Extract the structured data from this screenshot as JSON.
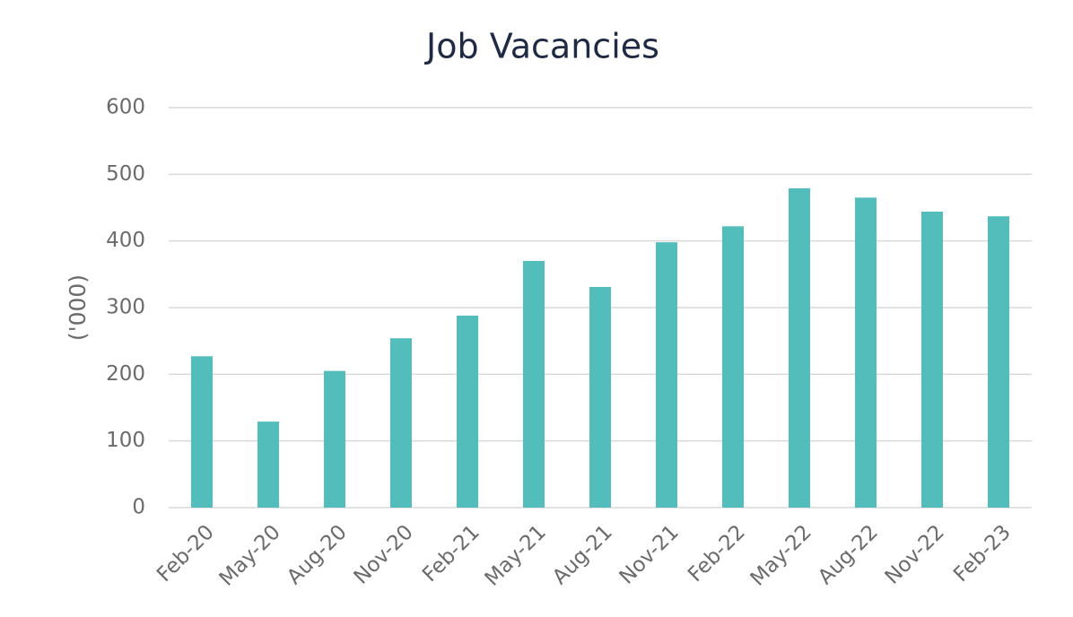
{
  "chart_data": {
    "type": "bar",
    "title": "Job Vacancies",
    "y_label": "('000)",
    "categories": [
      "Feb-20",
      "May-20",
      "Aug-20",
      "Nov-20",
      "Feb-21",
      "May-21",
      "Aug-21",
      "Nov-21",
      "Feb-22",
      "May-22",
      "Aug-22",
      "Nov-22",
      "Feb-23"
    ],
    "values": [
      227,
      129,
      205,
      254,
      288,
      370,
      331,
      398,
      422,
      479,
      465,
      444,
      437
    ],
    "color": "#52bdbb",
    "ylim": [
      0,
      600
    ],
    "yticks": [
      0,
      100,
      200,
      300,
      400,
      500,
      600
    ],
    "grid": true
  }
}
